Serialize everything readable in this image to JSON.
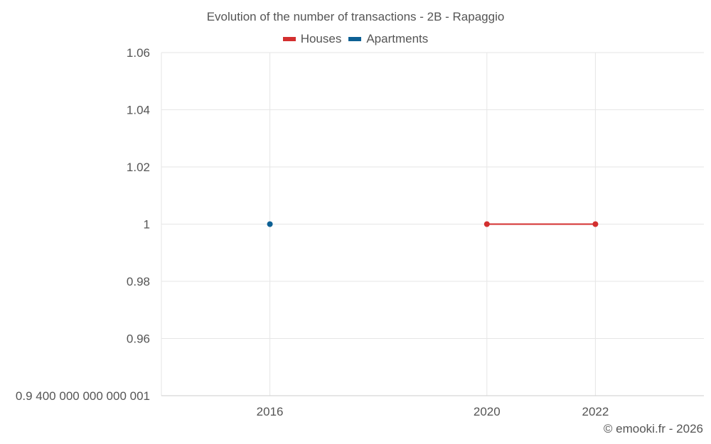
{
  "chart_data": {
    "type": "line",
    "title": "Evolution of the number of transactions - 2B - Rapaggio",
    "x_ticks": [
      "2016",
      "2020",
      "2022"
    ],
    "x_range": [
      2014,
      2024
    ],
    "y_ticks": [
      "0.9 400 000 000 000 001",
      "0.96",
      "0.98",
      "1",
      "1.02",
      "1.04",
      "1.06"
    ],
    "ylim": [
      0.94,
      1.06
    ],
    "series": [
      {
        "name": "Houses",
        "color": "#d32f2f",
        "x": [
          2020,
          2022
        ],
        "y": [
          1,
          1
        ]
      },
      {
        "name": "Apartments",
        "color": "#0d6094",
        "x": [
          2016
        ],
        "y": [
          1
        ]
      }
    ],
    "grid": true,
    "legend_position": "top-center"
  },
  "credit": "© emooki.fr - 2026"
}
